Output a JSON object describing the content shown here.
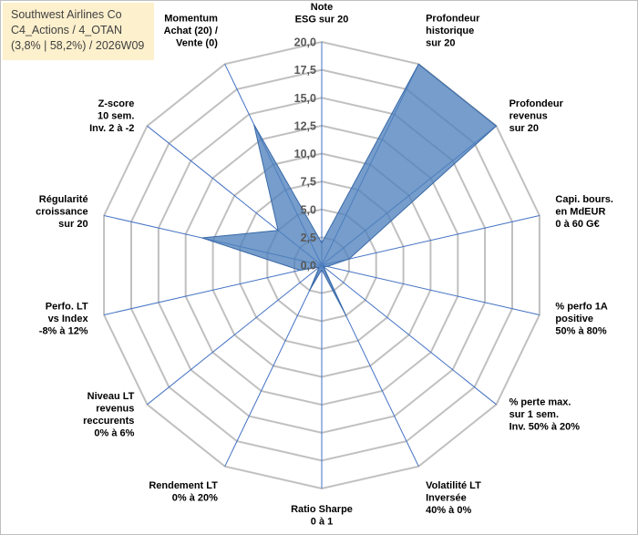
{
  "title": {
    "line1": "Southwest Airlines Co",
    "line2": "C4_Actions / 4_OTAN",
    "line3": "(3,8% | 58,2%) / 2026W09"
  },
  "colors": {
    "fill": "#4f81bd",
    "fill_opacity": "0.78",
    "grid": "#c0c0c0",
    "axis_line": "#4472c4",
    "title_bg": "#fdf0cd"
  },
  "chart_data": {
    "type": "radar",
    "title": "Southwest Airlines Co",
    "rmin": 0,
    "rmax": 20,
    "ticks": [
      "0,0",
      "2,5",
      "5,0",
      "7,5",
      "10,0",
      "12,5",
      "15,0",
      "17,5",
      "20,0"
    ],
    "tick_values": [
      0,
      2.5,
      5,
      7.5,
      10,
      12.5,
      15,
      17.5,
      20
    ],
    "axes": [
      {
        "label": [
          "Note",
          "ESG sur 20"
        ],
        "value": 2.0
      },
      {
        "label": [
          "Profondeur",
          "historique",
          "sur 20"
        ],
        "value": 20.0
      },
      {
        "label": [
          "Profondeur",
          "revenus",
          "sur 20"
        ],
        "value": 20.0
      },
      {
        "label": [
          "Capi. bours.",
          "en MdEUR",
          "0 à 60 G€"
        ],
        "value": 2.5
      },
      {
        "label": [
          "% perfo 1A",
          "positive",
          "50% à 80%"
        ],
        "value": 0.5
      },
      {
        "label": [
          "% perte max.",
          "sur 1 sem.",
          "Inv. 50% à 20%"
        ],
        "value": 0.2
      },
      {
        "label": [
          "Volatilité LT",
          "Inversée",
          "40% à 0%"
        ],
        "value": 5.0
      },
      {
        "label": [
          "Ratio Sharpe",
          "0 à 1"
        ],
        "value": 0.4
      },
      {
        "label": [
          "Rendement LT",
          "0% à 20%"
        ],
        "value": 2.5
      },
      {
        "label": [
          "Niveau LT",
          "revenus",
          "reccurents",
          "0% à 6%"
        ],
        "value": 0.3
      },
      {
        "label": [
          "Perfo. LT",
          "vs Index",
          "-8% à 12%"
        ],
        "value": 2.0
      },
      {
        "label": [
          "Régularité",
          "croissance",
          "sur 20"
        ],
        "value": 11.0
      },
      {
        "label": [
          "Z-score",
          "10 sem.",
          "Inv. 2 à -2"
        ],
        "value": 5.0
      },
      {
        "label": [
          "Momentum",
          "Achat (20) /",
          "Vente (0)"
        ],
        "value": 14.0
      }
    ]
  }
}
